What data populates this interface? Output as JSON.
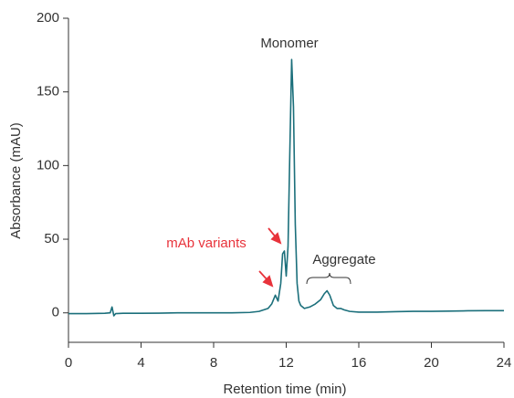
{
  "chart_data": {
    "type": "line",
    "x_label": "Retention time (min)",
    "y_label": "Absorbance (mAU)",
    "xlim": [
      0,
      24
    ],
    "xticks": [
      0,
      4,
      8,
      12,
      16,
      20,
      24
    ],
    "ylim": [
      -20,
      200
    ],
    "yticks": [
      0,
      50,
      100,
      150,
      200
    ],
    "annotations": [
      "Monomer",
      "mAb variants",
      "Aggregate"
    ],
    "series": [
      {
        "color": "#1b6f7b",
        "x": [
          0,
          1,
          2,
          2.3,
          2.4,
          2.5,
          2.6,
          3,
          4,
          5,
          6,
          7,
          8,
          9,
          10,
          10.5,
          11,
          11.2,
          11.4,
          11.55,
          11.7,
          11.8,
          11.9,
          12.0,
          12.1,
          12.2,
          12.3,
          12.4,
          12.5,
          12.6,
          12.7,
          12.8,
          13,
          13.3,
          13.6,
          13.9,
          14.1,
          14.25,
          14.4,
          14.6,
          14.8,
          15,
          15.2,
          15.5,
          16,
          17,
          18,
          19,
          20,
          21,
          22,
          23,
          24
        ],
        "values": [
          -0.5,
          -0.5,
          -0.3,
          0,
          4,
          -2,
          -0.5,
          -0.3,
          -0.3,
          -0.2,
          0,
          0,
          0,
          0,
          0.3,
          1,
          3,
          6,
          12,
          8,
          20,
          40,
          42,
          25,
          45,
          110,
          172,
          140,
          60,
          20,
          8,
          5,
          3,
          4,
          6,
          9,
          13,
          15,
          12,
          5,
          3,
          3,
          2,
          1,
          0.5,
          0.5,
          0.8,
          1,
          1,
          1.2,
          1.4,
          1.5,
          1.5
        ]
      }
    ]
  }
}
